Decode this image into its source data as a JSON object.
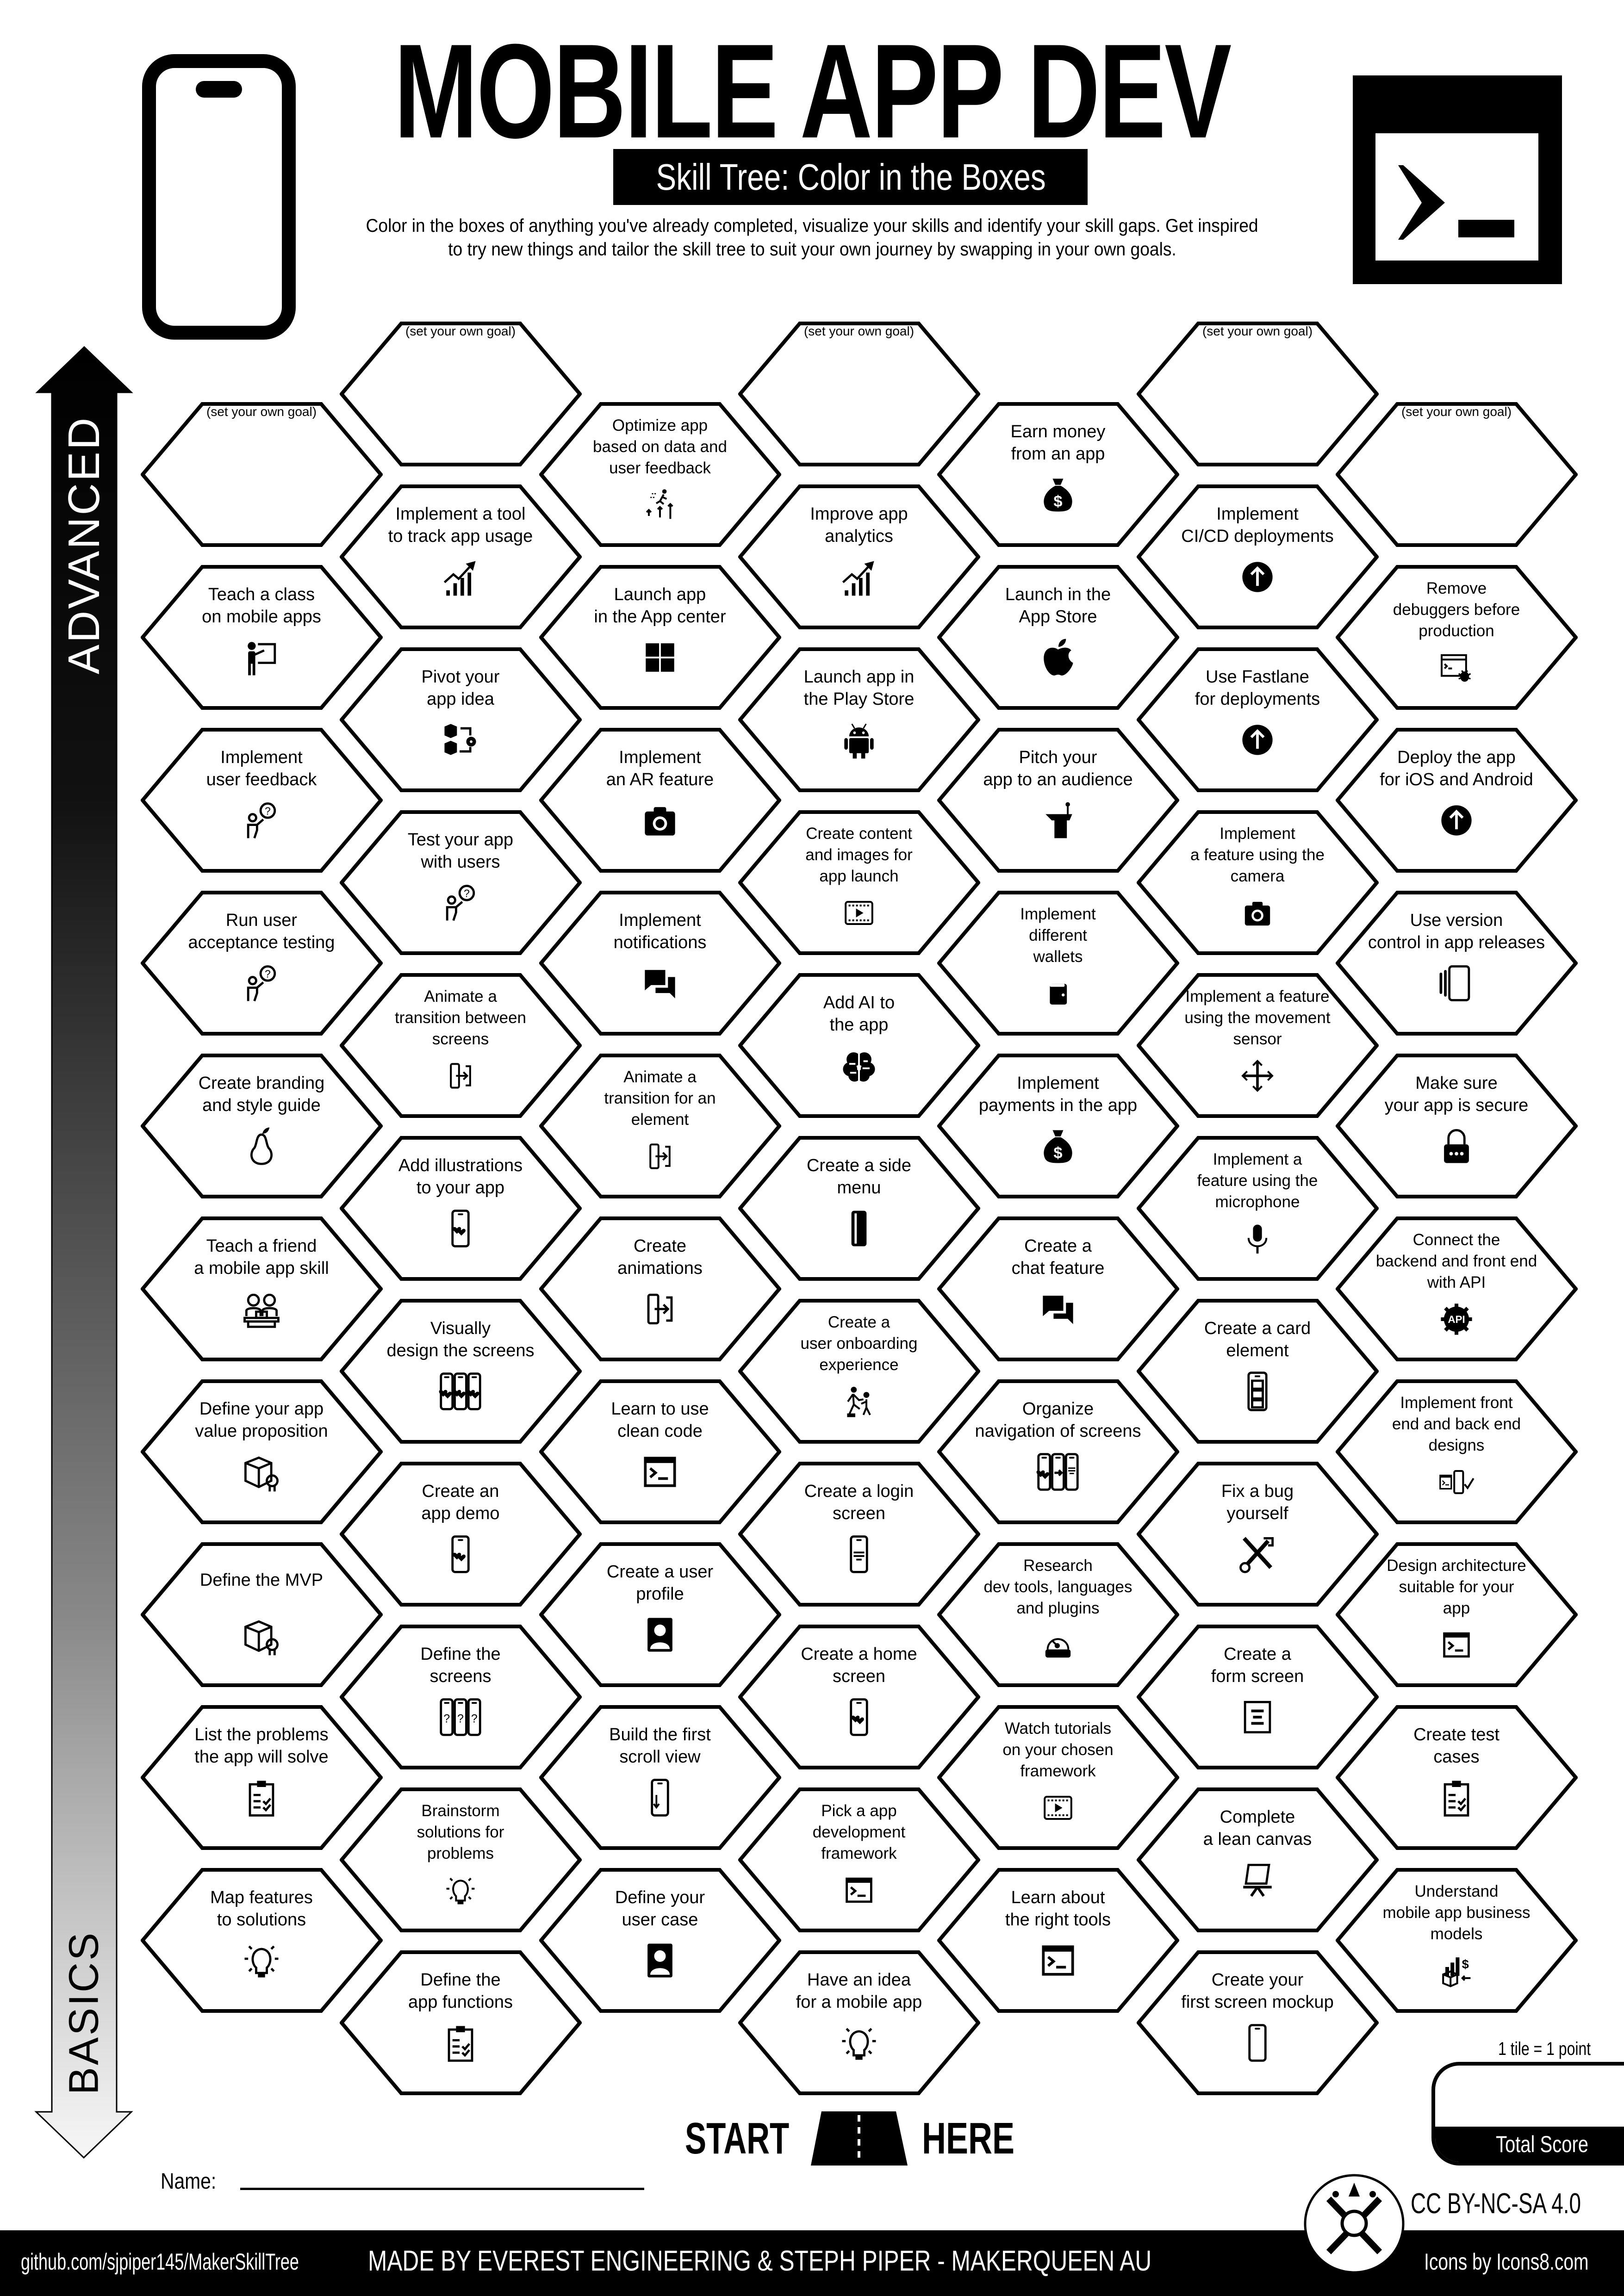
{
  "header": {
    "title": "MOBILE APP DEV",
    "subtitle": "Skill Tree: Color in the Boxes",
    "description_lines": [
      "Color in the boxes of anything you've already completed, visualize your skills and identify your skill gaps.  Get inspired",
      "to try new things and tailor the skill tree to suit your own journey by swapping in your own goals."
    ]
  },
  "axis": {
    "top_label": "ADVANCED",
    "bottom_label": "BASICS"
  },
  "goal_label": "(set your own goal)",
  "columns": [
    {
      "hexes": [
        {
          "goal": true
        },
        {
          "lines": [
            "Teach a class",
            "on mobile apps"
          ],
          "icon": "teacher"
        },
        {
          "lines": [
            "Implement",
            "user feedback"
          ],
          "icon": "feedback-person"
        },
        {
          "lines": [
            "Run user",
            "acceptance testing"
          ],
          "icon": "feedback-person"
        },
        {
          "lines": [
            "Create branding",
            "and style guide"
          ],
          "icon": "pear"
        },
        {
          "lines": [
            "Teach a friend",
            "a mobile app skill"
          ],
          "icon": "coworkers"
        },
        {
          "lines": [
            "Define your app",
            "value proposition"
          ],
          "icon": "cube-badge"
        },
        {
          "lines": [
            "Define the MVP"
          ],
          "icon": "cube-badge"
        },
        {
          "lines": [
            "List the problems",
            "the app will solve"
          ],
          "icon": "clipboard-check"
        },
        {
          "lines": [
            "Map features",
            "to solutions"
          ],
          "icon": "lightbulb"
        }
      ]
    },
    {
      "hexes": [
        {
          "goal": true
        },
        {
          "lines": [
            "Implement a tool",
            "to track app usage"
          ],
          "icon": "chart-up"
        },
        {
          "lines": [
            "Pivot your",
            "app idea"
          ],
          "icon": "pivot"
        },
        {
          "lines": [
            "Test your app",
            "with users"
          ],
          "icon": "feedback-person"
        },
        {
          "lines": [
            "Animate a",
            "transition between",
            "screens"
          ],
          "icon": "transition"
        },
        {
          "lines": [
            "Add illustrations",
            "to your app"
          ],
          "icon": "phone-hearts"
        },
        {
          "lines": [
            "Visually",
            "design the screens"
          ],
          "icon": "three-phones-hearts"
        },
        {
          "lines": [
            "Create an",
            "app demo"
          ],
          "icon": "phone-hearts"
        },
        {
          "lines": [
            "Define the",
            "screens"
          ],
          "icon": "three-phones-question"
        },
        {
          "lines": [
            "Brainstorm",
            "solutions for",
            "problems"
          ],
          "icon": "lightbulb"
        },
        {
          "lines": [
            "Define the",
            "app functions"
          ],
          "icon": "clipboard-check"
        }
      ]
    },
    {
      "hexes": [
        {
          "lines": [
            "Optimize app",
            "based on data and",
            "user feedback"
          ],
          "icon": "optimize"
        },
        {
          "lines": [
            "Launch app",
            "in the App center"
          ],
          "icon": "windows"
        },
        {
          "lines": [
            "Implement",
            "an AR feature"
          ],
          "icon": "camera"
        },
        {
          "lines": [
            "Implement",
            "notifications"
          ],
          "icon": "chat"
        },
        {
          "lines": [
            "Animate a",
            "transition for an",
            "element"
          ],
          "icon": "transition"
        },
        {
          "lines": [
            "Create",
            "animations"
          ],
          "icon": "transition"
        },
        {
          "lines": [
            "Learn to use",
            "clean code"
          ],
          "icon": "terminal"
        },
        {
          "lines": [
            "Create a user",
            "profile"
          ],
          "icon": "profile"
        },
        {
          "lines": [
            "Build the first",
            "scroll view"
          ],
          "icon": "phone-scroll"
        },
        {
          "lines": [
            "Define your",
            "user case"
          ],
          "icon": "profile"
        }
      ]
    },
    {
      "hexes": [
        {
          "goal": true
        },
        {
          "lines": [
            "Improve app",
            "analytics"
          ],
          "icon": "chart-up"
        },
        {
          "lines": [
            "Launch app in",
            "the Play Store"
          ],
          "icon": "android"
        },
        {
          "lines": [
            "Create content",
            "and images for",
            "app launch"
          ],
          "icon": "film-play"
        },
        {
          "lines": [
            "Add AI to",
            "the app"
          ],
          "icon": "brain"
        },
        {
          "lines": [
            "Create a side",
            "menu"
          ],
          "icon": "phone-solid"
        },
        {
          "lines": [
            "Create a",
            "user onboarding",
            "experience"
          ],
          "icon": "onboarding"
        },
        {
          "lines": [
            "Create a login",
            "screen"
          ],
          "icon": "phone-login"
        },
        {
          "lines": [
            "Create a home",
            "screen"
          ],
          "icon": "phone-hearts"
        },
        {
          "lines": [
            "Pick a app",
            "development",
            "framework"
          ],
          "icon": "terminal"
        },
        {
          "lines": [
            "Have an idea",
            "for a mobile app"
          ],
          "icon": "lightbulb"
        }
      ]
    },
    {
      "hexes": [
        {
          "lines": [
            "Earn money",
            "from an app"
          ],
          "icon": "money-bag"
        },
        {
          "lines": [
            "Launch in the",
            "App Store"
          ],
          "icon": "apple"
        },
        {
          "lines": [
            "Pitch your",
            "app to an audience"
          ],
          "icon": "podium"
        },
        {
          "lines": [
            "Implement",
            "different",
            "wallets"
          ],
          "icon": "wallet"
        },
        {
          "lines": [
            "Implement",
            "payments in the app"
          ],
          "icon": "money-bag"
        },
        {
          "lines": [
            "Create a",
            "chat feature"
          ],
          "icon": "chat"
        },
        {
          "lines": [
            "Organize",
            "navigation of screens"
          ],
          "icon": "three-phones-nav"
        },
        {
          "lines": [
            "Research",
            "dev tools, languages",
            "and plugins"
          ],
          "icon": "research"
        },
        {
          "lines": [
            "Watch tutorials",
            "on your chosen",
            "framework"
          ],
          "icon": "film-play"
        },
        {
          "lines": [
            "Learn about",
            "the right tools"
          ],
          "icon": "terminal"
        }
      ]
    },
    {
      "hexes": [
        {
          "goal": true
        },
        {
          "lines": [
            "Implement",
            "CI/CD deployments"
          ],
          "icon": "upload-circle"
        },
        {
          "lines": [
            "Use Fastlane",
            "for deployments"
          ],
          "icon": "upload-circle"
        },
        {
          "lines": [
            "Implement",
            "a feature using the",
            "camera"
          ],
          "icon": "camera"
        },
        {
          "lines": [
            "Implement a feature",
            "using the movement",
            "sensor"
          ],
          "icon": "move-arrows"
        },
        {
          "lines": [
            "Implement a",
            "feature using the",
            "microphone"
          ],
          "icon": "microphone"
        },
        {
          "lines": [
            "Create a card",
            "element"
          ],
          "icon": "card-phone"
        },
        {
          "lines": [
            "Fix a bug",
            "yourself"
          ],
          "icon": "tools"
        },
        {
          "lines": [
            "Create a",
            "form screen"
          ],
          "icon": "form"
        },
        {
          "lines": [
            "Complete",
            "a lean canvas"
          ],
          "icon": "canvas"
        },
        {
          "lines": [
            "Create your",
            "first screen mockup"
          ],
          "icon": "phone"
        }
      ]
    },
    {
      "hexes": [
        {
          "goal": true
        },
        {
          "lines": [
            "Remove",
            "debuggers before",
            "production"
          ],
          "icon": "debug"
        },
        {
          "lines": [
            "Deploy the app",
            "for iOS and Android"
          ],
          "icon": "upload-circle"
        },
        {
          "lines": [
            "Use version",
            "control in app releases"
          ],
          "icon": "versions"
        },
        {
          "lines": [
            "Make sure",
            "your app is secure"
          ],
          "icon": "lock"
        },
        {
          "lines": [
            "Connect the",
            "backend and front end",
            "with API"
          ],
          "icon": "api"
        },
        {
          "lines": [
            "Implement front",
            "end and back end",
            "designs"
          ],
          "icon": "terminal-phone-check"
        },
        {
          "lines": [
            "Design architecture",
            "suitable for your",
            "app"
          ],
          "icon": "terminal"
        },
        {
          "lines": [
            "Create test",
            "cases"
          ],
          "icon": "clipboard-check"
        },
        {
          "lines": [
            "Understand",
            "mobile app business",
            "models"
          ],
          "icon": "business"
        }
      ]
    }
  ],
  "start": {
    "left": "START",
    "right": "HERE",
    "icon": "road"
  },
  "name_label": "Name:",
  "score": {
    "note": "1 tile = 1 point",
    "label": "Total Score"
  },
  "license": "CC BY-NC-SA 4.0",
  "footer": {
    "github": "github.com/sjpiper145/MakerSkillTree",
    "credits": "MADE BY EVEREST ENGINEERING & STEPH PIPER  -  MAKERQUEEN AU",
    "icons_credit": "Icons by Icons8.com"
  }
}
